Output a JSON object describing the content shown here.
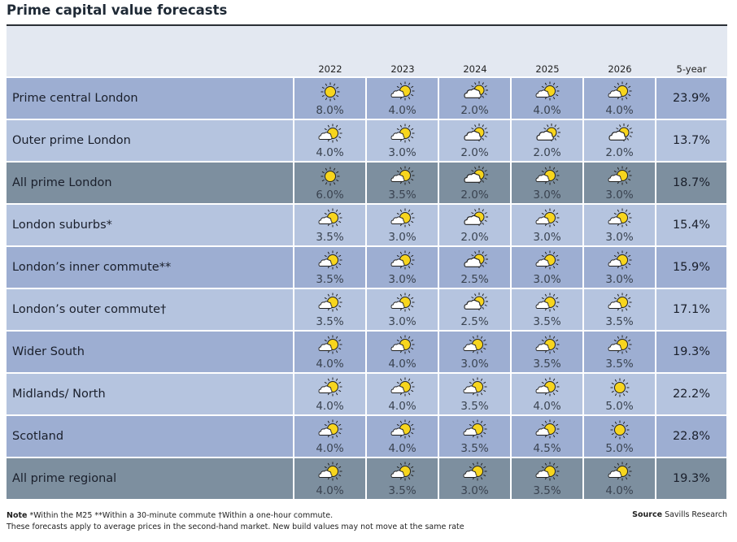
{
  "title": "Prime capital value forecasts",
  "colors": {
    "dark": "#9daed2",
    "light": "#b5c4df",
    "gray": "#7d8f9f",
    "sun": "#f7d51d"
  },
  "chart_data": {
    "type": "table",
    "title": "Prime capital value forecasts",
    "columns": [
      "2022",
      "2023",
      "2024",
      "2025",
      "2026",
      "5-year"
    ],
    "rows": [
      {
        "label": "Prime central London",
        "style": "dark",
        "values": [
          "8.0%",
          "4.0%",
          "2.0%",
          "4.0%",
          "4.0%"
        ],
        "icons": [
          "sun",
          "sun-cloud",
          "cloud-sun",
          "sun-cloud",
          "sun-cloud"
        ],
        "five": "23.9%"
      },
      {
        "label": "Outer prime London",
        "style": "light",
        "values": [
          "4.0%",
          "3.0%",
          "2.0%",
          "2.0%",
          "2.0%"
        ],
        "icons": [
          "sun-cloud",
          "sun-cloud",
          "cloud-sun",
          "cloud-sun",
          "cloud-sun"
        ],
        "five": "13.7%"
      },
      {
        "label": "All prime London",
        "style": "gray",
        "values": [
          "6.0%",
          "3.5%",
          "2.0%",
          "3.0%",
          "3.0%"
        ],
        "icons": [
          "sun",
          "sun-cloud",
          "cloud-sun",
          "sun-cloud",
          "sun-cloud"
        ],
        "five": "18.7%"
      },
      {
        "label": "London suburbs*",
        "style": "light",
        "values": [
          "3.5%",
          "3.0%",
          "2.0%",
          "3.0%",
          "3.0%"
        ],
        "icons": [
          "sun-cloud",
          "sun-cloud",
          "cloud-sun",
          "sun-cloud",
          "sun-cloud"
        ],
        "five": "15.4%"
      },
      {
        "label": "London’s inner commute**",
        "style": "dark",
        "values": [
          "3.5%",
          "3.0%",
          "2.5%",
          "3.0%",
          "3.0%"
        ],
        "icons": [
          "sun-cloud",
          "sun-cloud",
          "cloud-sun",
          "sun-cloud",
          "sun-cloud"
        ],
        "five": "15.9%"
      },
      {
        "label": "London’s outer commute†",
        "style": "light",
        "values": [
          "3.5%",
          "3.0%",
          "2.5%",
          "3.5%",
          "3.5%"
        ],
        "icons": [
          "sun-cloud",
          "sun-cloud",
          "cloud-sun",
          "sun-cloud",
          "sun-cloud"
        ],
        "five": "17.1%"
      },
      {
        "label": "Wider South",
        "style": "dark",
        "values": [
          "4.0%",
          "4.0%",
          "3.0%",
          "3.5%",
          "3.5%"
        ],
        "icons": [
          "sun-cloud",
          "sun-cloud",
          "sun-cloud",
          "sun-cloud",
          "sun-cloud"
        ],
        "five": "19.3%"
      },
      {
        "label": "Midlands/ North",
        "style": "light",
        "values": [
          "4.0%",
          "4.0%",
          "3.5%",
          "4.0%",
          "5.0%"
        ],
        "icons": [
          "sun-cloud",
          "sun-cloud",
          "sun-cloud",
          "sun-cloud",
          "sun"
        ],
        "five": "22.2%"
      },
      {
        "label": "Scotland",
        "style": "dark",
        "values": [
          "4.0%",
          "4.0%",
          "3.5%",
          "4.5%",
          "5.0%"
        ],
        "icons": [
          "sun-cloud",
          "sun-cloud",
          "sun-cloud",
          "sun-cloud",
          "sun"
        ],
        "five": "22.8%"
      },
      {
        "label": "All prime regional",
        "style": "gray",
        "values": [
          "4.0%",
          "3.5%",
          "3.0%",
          "3.5%",
          "4.0%"
        ],
        "icons": [
          "sun-cloud",
          "sun-cloud",
          "sun-cloud",
          "sun-cloud",
          "sun-cloud"
        ],
        "five": "19.3%"
      }
    ]
  },
  "note": {
    "label": "Note",
    "line1": "*Within the M25 **Within a 30-minute commute †Within a one-hour commute.",
    "line2": "These forecasts apply to average prices in the second-hand market. New build values may not move at the same rate"
  },
  "source": {
    "label": "Source",
    "text": "Savills Research"
  }
}
